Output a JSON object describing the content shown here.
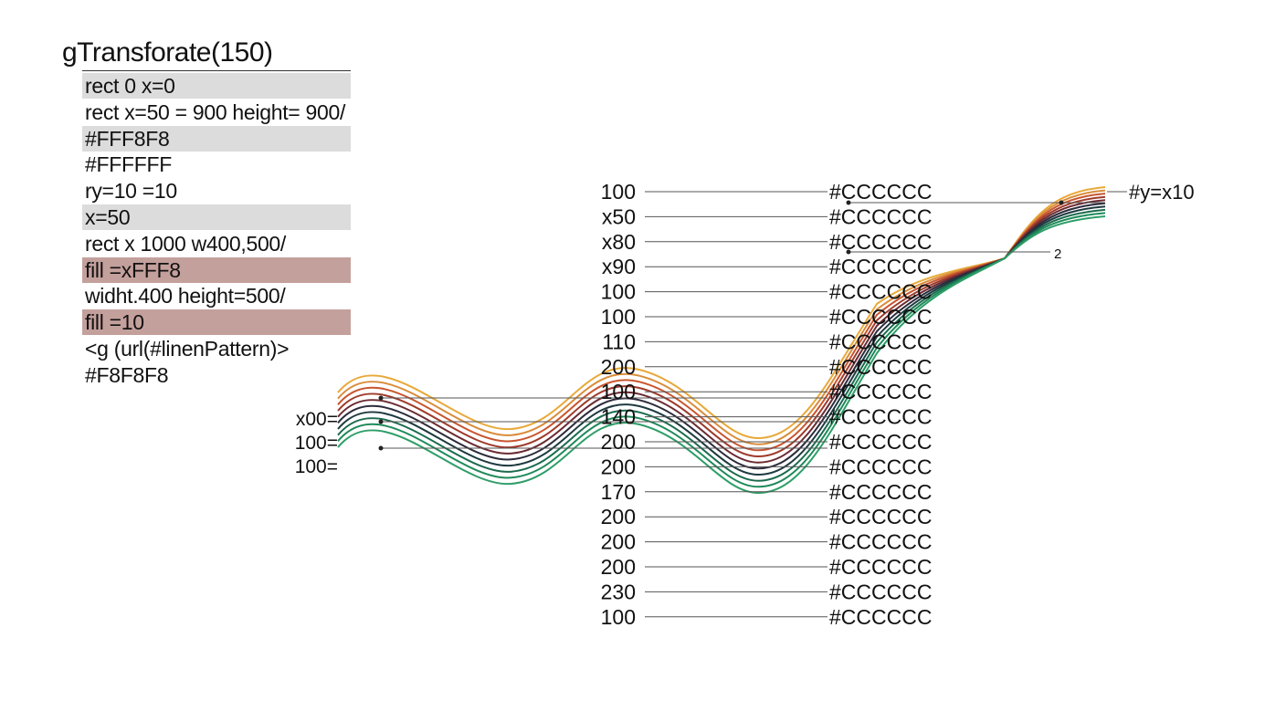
{
  "left_panel": {
    "title": "gTransforate(150)",
    "lines": [
      {
        "text": "rect 0 x=0",
        "highlight": "gray"
      },
      {
        "text": "rect  x=50 = 900 height= 900/",
        "highlight": "none"
      },
      {
        "text": "#FFF8F8",
        "highlight": "gray"
      },
      {
        "text": "#FFFFFF",
        "highlight": "none"
      },
      {
        "text": "ry=10 =10",
        "highlight": "none"
      },
      {
        "text": "x=50",
        "highlight": "gray"
      },
      {
        "text": "rect  x  1000 w400,500/",
        "highlight": "none"
      },
      {
        "text": "fill =xFFF8",
        "highlight": "rose"
      },
      {
        "text": "widht.400 height=500/",
        "highlight": "none"
      },
      {
        "text": "fill =10",
        "highlight": "rose"
      },
      {
        "text": "<g (url(#linenPattern)>",
        "highlight": "none"
      },
      {
        "text": "#F8F8F8",
        "highlight": "none"
      }
    ]
  },
  "figure": {
    "left_labels": [
      "x00=",
      "100=",
      "100="
    ],
    "rows": [
      {
        "value": "100",
        "color_label": "#CCCCCC"
      },
      {
        "value": "x50",
        "color_label": "#CCCCCC"
      },
      {
        "value": "x80",
        "color_label": "#CCCCCC"
      },
      {
        "value": "x90",
        "color_label": "#CCCCCC"
      },
      {
        "value": "100",
        "color_label": "#CCCCCC"
      },
      {
        "value": "100",
        "color_label": "#CCCCCC"
      },
      {
        "value": "110",
        "color_label": "#CCCCCC"
      },
      {
        "value": "200",
        "color_label": "#CCCCCC"
      },
      {
        "value": "100",
        "color_label": "#CCCCCC"
      },
      {
        "value": "140",
        "color_label": "#CCCCCC"
      },
      {
        "value": "200",
        "color_label": "#CCCCCC"
      },
      {
        "value": "200",
        "color_label": "#CCCCCC"
      },
      {
        "value": "170",
        "color_label": "#CCCCCC"
      },
      {
        "value": "200",
        "color_label": "#CCCCCC"
      },
      {
        "value": "200",
        "color_label": "#CCCCCC"
      },
      {
        "value": "200",
        "color_label": "#CCCCCC"
      },
      {
        "value": "230",
        "color_label": "#CCCCCC"
      },
      {
        "value": "100",
        "color_label": "#CCCCCC"
      }
    ],
    "right_label": "#y=x10",
    "small_label": "2",
    "wave_colors": [
      "#E8A93A",
      "#D98C3A",
      "#C8552E",
      "#9E3B2C",
      "#6B2A32",
      "#2C2B3C",
      "#1E3A40",
      "#1B6B4E",
      "#1F8A5A",
      "#2E9E68"
    ],
    "colors": {
      "highlight_gray": "#DCDCDC",
      "highlight_rose": "#C4A09C",
      "leader_line": "#555555"
    }
  }
}
